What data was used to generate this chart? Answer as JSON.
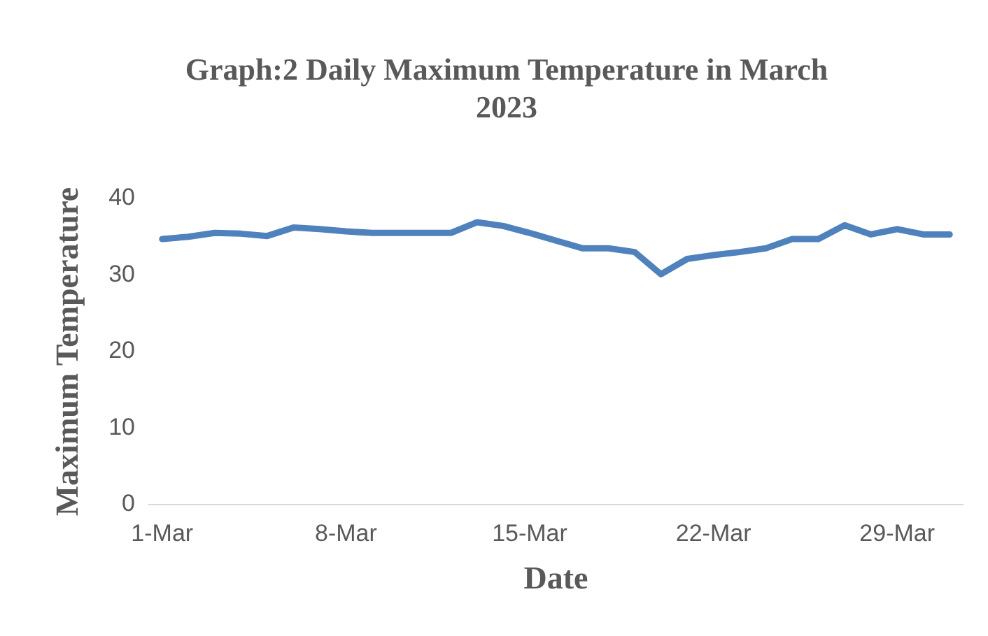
{
  "chart_data": {
    "type": "line",
    "title": "Graph:2 Daily Maximum Temperature in March 2023",
    "xlabel": "Date",
    "ylabel": "Maximum Temperature",
    "categories": [
      "1-Mar",
      null,
      null,
      null,
      null,
      null,
      null,
      "8-Mar",
      null,
      null,
      null,
      null,
      null,
      null,
      "15-Mar",
      null,
      null,
      null,
      null,
      null,
      null,
      "22-Mar",
      null,
      null,
      null,
      null,
      null,
      null,
      "29-Mar",
      null,
      null
    ],
    "series": [
      {
        "color": "#4f81bd",
        "values": [
          34.7,
          35.0,
          35.5,
          35.4,
          35.1,
          36.2,
          36.0,
          35.7,
          35.5,
          35.5,
          35.5,
          35.5,
          36.9,
          36.4,
          35.5,
          34.5,
          33.5,
          33.5,
          33.0,
          30.1,
          32.1,
          32.6,
          33.0,
          33.5,
          34.7,
          34.7,
          36.5,
          35.3,
          36.0,
          35.3,
          35.3
        ]
      }
    ],
    "ylim": [
      0,
      40
    ],
    "yticks": [
      0,
      10,
      20,
      30,
      40
    ],
    "grid": false,
    "legend": false,
    "marker": "none",
    "line_style": "solid"
  }
}
